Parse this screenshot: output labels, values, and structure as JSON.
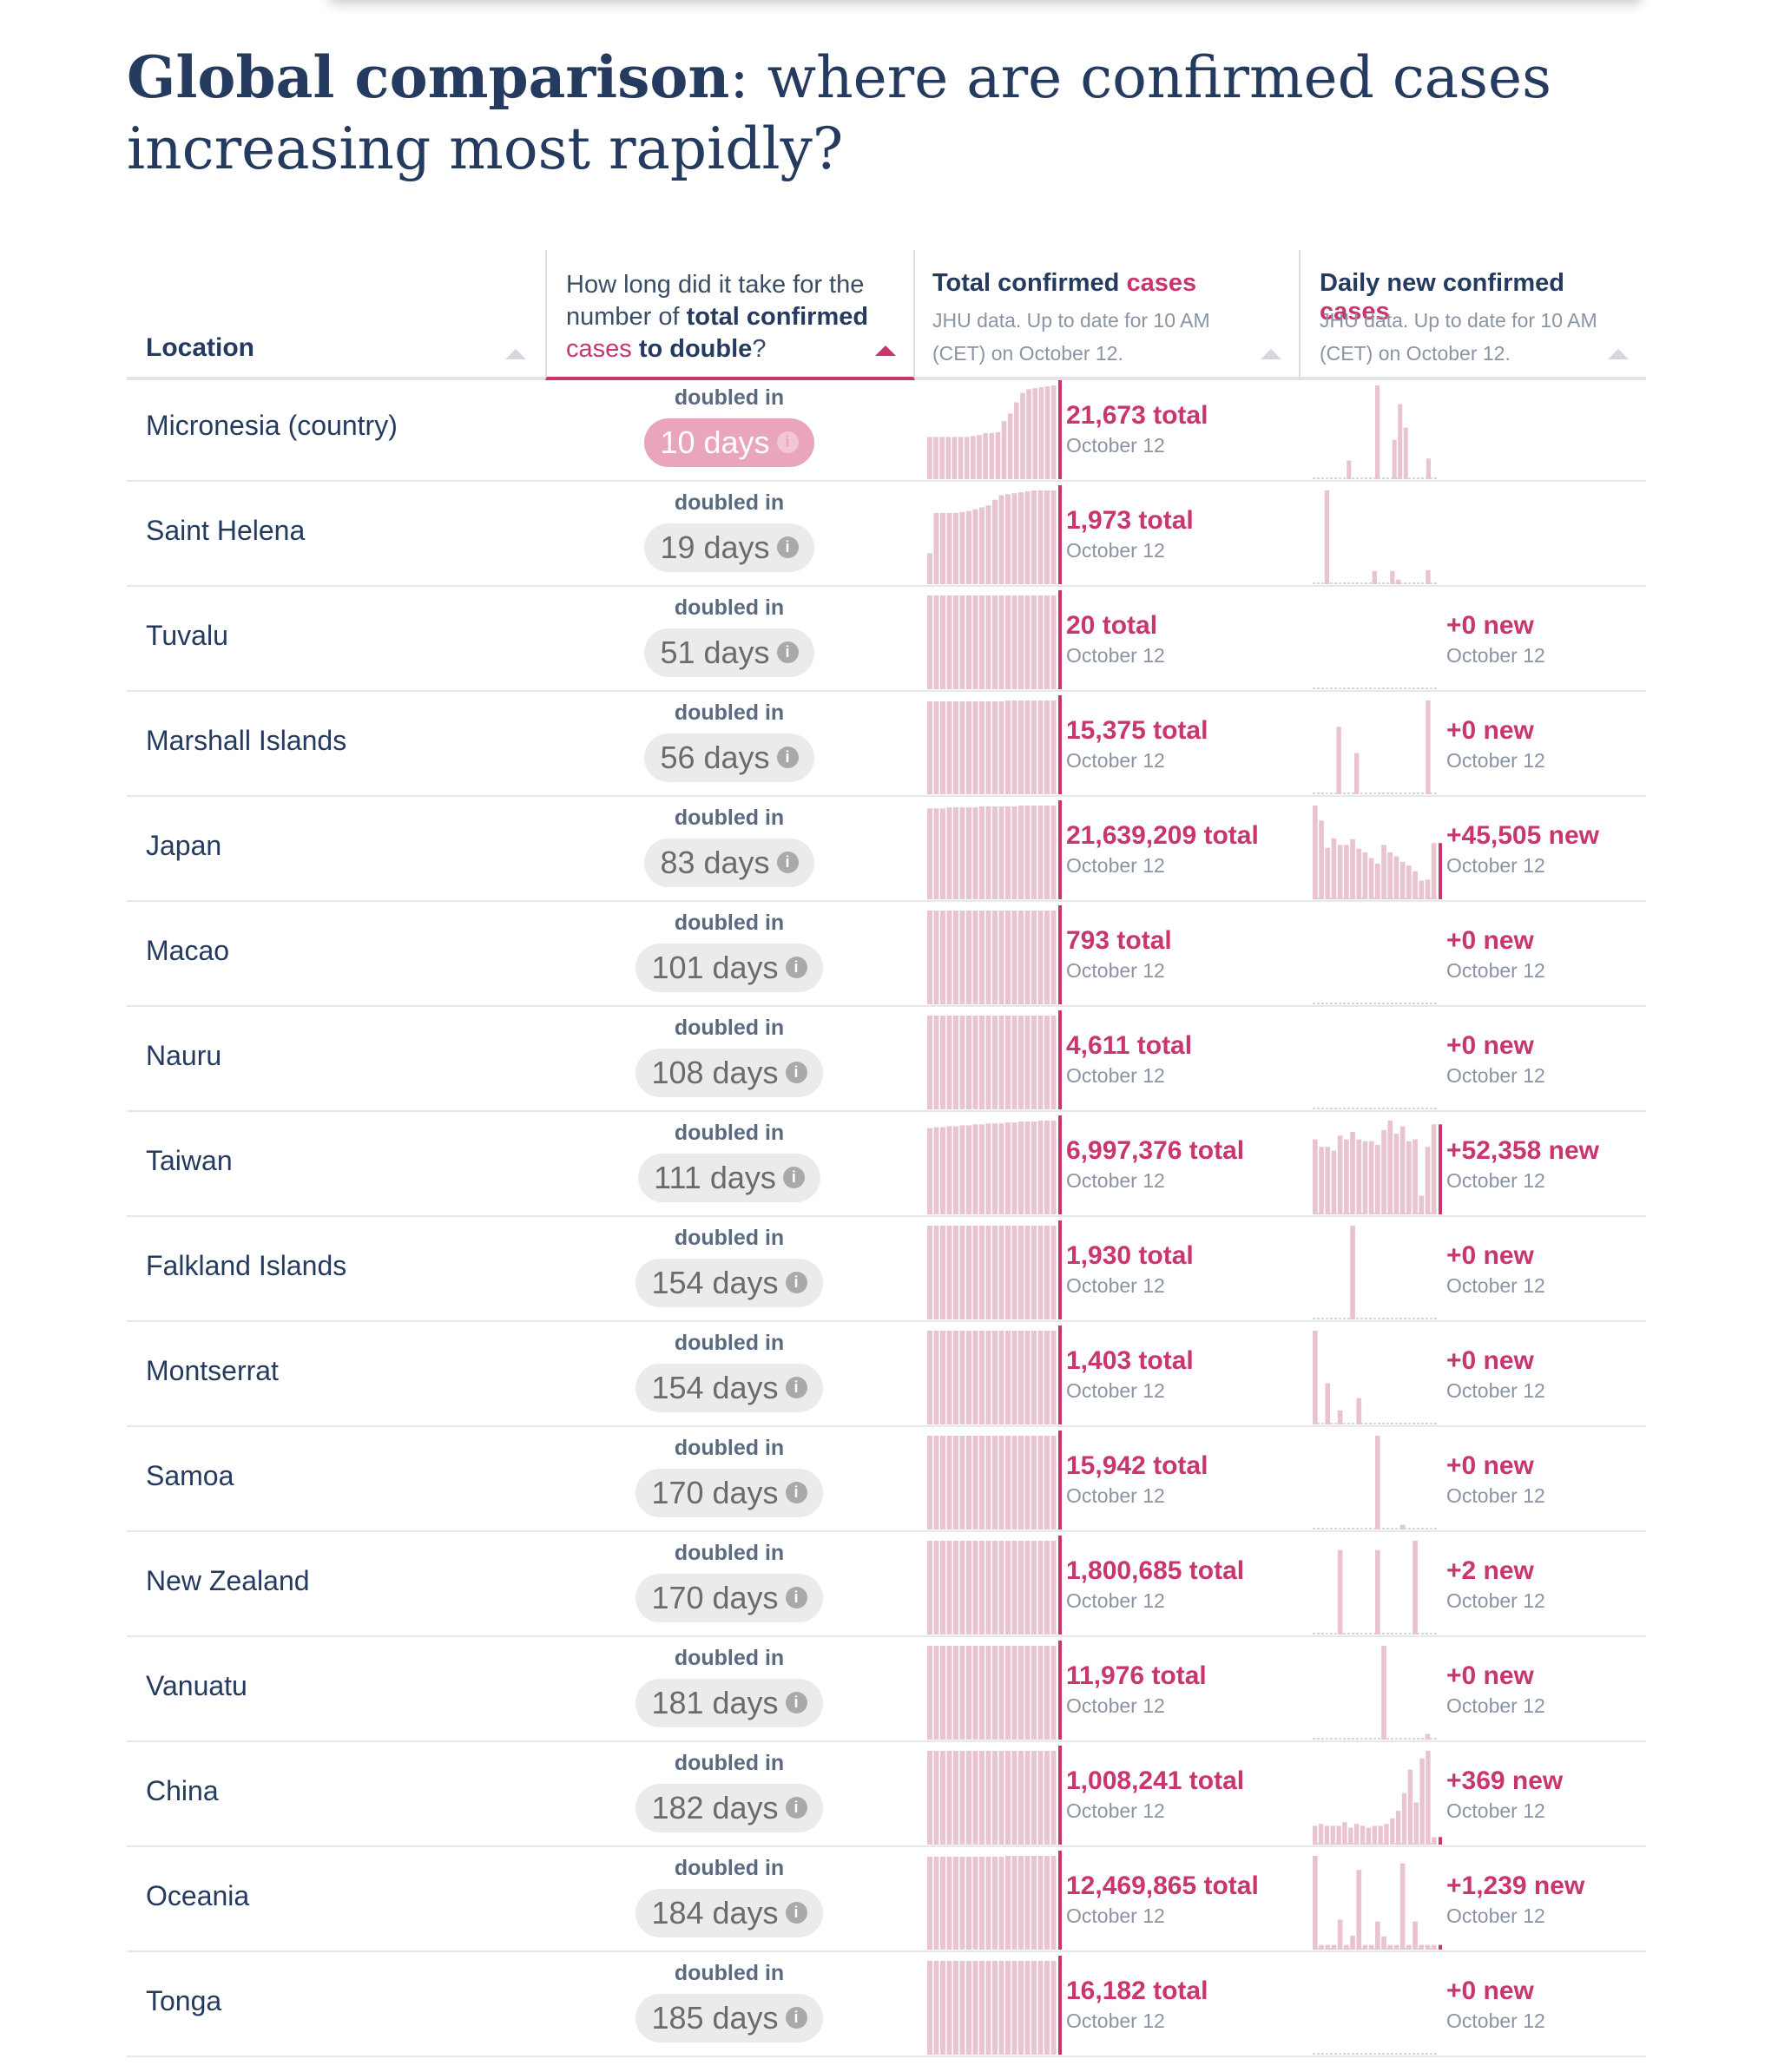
{
  "title": {
    "bold": "Global comparison",
    "rest": ": where are confirmed cases increasing most rapidly?"
  },
  "columns": {
    "location": "Location",
    "doubling": {
      "pre": "How long did it take for the number of ",
      "bold": "total confirmed",
      "pink": "cases",
      "post_bold": "to double",
      "post": "?"
    },
    "total": {
      "title": "Total confirmed",
      "pink": "cases",
      "sub": "JHU data. Up to date for 10 AM (CET) on October 12."
    },
    "daily": {
      "title": "Daily new confirmed",
      "pink": "cases",
      "sub": "JHU data. Up to date for 10 AM (CET) on October 12."
    }
  },
  "doubled_label": "doubled in",
  "info_icon_glyph": "i",
  "colors": {
    "accent": "#c9356f",
    "bar": "#e9c4cf",
    "hot_pill": "#e9a5bb",
    "pill": "#ebebeb"
  },
  "rows": [
    {
      "location": "Micronesia (country)",
      "days": "10 days",
      "hot": true,
      "total": "21,673 total",
      "total_date": "October 12",
      "new": "",
      "new_date": "",
      "total_spark": [
        0.45,
        0.45,
        0.45,
        0.45,
        0.45,
        0.45,
        0.45,
        0.46,
        0.47,
        0.49,
        0.49,
        0.5,
        0.62,
        0.7,
        0.82,
        0.92,
        0.96,
        0.97,
        0.98,
        0.99,
        1
      ],
      "daily_spark": [
        0,
        0,
        0,
        0,
        0,
        0,
        0.2,
        0,
        0,
        0,
        0,
        1,
        0,
        0,
        0.42,
        0.8,
        0.55,
        0,
        0,
        0,
        0.22,
        0
      ]
    },
    {
      "location": "Saint Helena",
      "days": "19 days",
      "hot": false,
      "total": "1,973 total",
      "total_date": "October 12",
      "new": "",
      "new_date": "",
      "total_spark": [
        0.33,
        0.76,
        0.76,
        0.76,
        0.76,
        0.77,
        0.78,
        0.8,
        0.82,
        0.84,
        0.9,
        0.95,
        0.96,
        0.97,
        0.98,
        0.99,
        1,
        1,
        1,
        1
      ],
      "daily_spark": [
        0,
        0,
        1,
        0,
        0,
        0,
        0,
        0,
        0,
        0,
        0.14,
        0,
        0,
        0.14,
        0.05,
        0,
        0,
        0,
        0,
        0.15,
        0
      ]
    },
    {
      "location": "Tuvalu",
      "days": "51 days",
      "hot": false,
      "total": "20 total",
      "total_date": "October 12",
      "new": "+0 new",
      "new_date": "October 12",
      "total_spark": [
        1,
        1,
        1,
        1,
        1,
        1,
        1,
        1,
        1,
        1,
        1,
        1,
        1,
        1,
        1,
        1,
        1,
        1,
        1,
        1
      ],
      "daily_spark": [
        0,
        0,
        0,
        0,
        0,
        0,
        0,
        0,
        0,
        0,
        0,
        0,
        0,
        0,
        0,
        0,
        0,
        0,
        0,
        0
      ]
    },
    {
      "location": "Marshall Islands",
      "days": "56 days",
      "hot": false,
      "total": "15,375 total",
      "total_date": "October 12",
      "new": "+0 new",
      "new_date": "October 12",
      "total_spark": [
        0.99,
        0.99,
        0.99,
        0.99,
        0.99,
        0.99,
        0.99,
        0.99,
        0.99,
        0.99,
        0.99,
        0.99,
        1,
        1,
        1,
        1,
        1,
        1,
        1,
        1
      ],
      "daily_spark": [
        0,
        0,
        0,
        0,
        0.72,
        0,
        0,
        0.44,
        0,
        0,
        0,
        0,
        0,
        0,
        0,
        0,
        0,
        0,
        0,
        1,
        0
      ]
    },
    {
      "location": "Japan",
      "days": "83 days",
      "hot": false,
      "total": "21,639,209 total",
      "total_date": "October 12",
      "new": "+45,505 new",
      "new_date": "October 12",
      "total_spark": [
        0.97,
        0.97,
        0.97,
        0.98,
        0.98,
        0.98,
        0.98,
        0.98,
        0.99,
        0.99,
        0.99,
        0.99,
        0.99,
        0.99,
        1,
        1,
        1,
        1,
        1,
        1
      ],
      "daily_spark": [
        1,
        0.84,
        0.55,
        0.65,
        0.58,
        0.58,
        0.64,
        0.54,
        0.5,
        0.44,
        0.38,
        0.58,
        0.5,
        0.46,
        0.4,
        0.36,
        0.3,
        0.2,
        0.21,
        0.6
      ]
    },
    {
      "location": "Macao",
      "days": "101 days",
      "hot": false,
      "total": "793 total",
      "total_date": "October 12",
      "new": "+0 new",
      "new_date": "October 12",
      "total_spark": [
        1,
        1,
        1,
        1,
        1,
        1,
        1,
        1,
        1,
        1,
        1,
        1,
        1,
        1,
        1,
        1,
        1,
        1,
        1,
        1
      ],
      "daily_spark": [
        0,
        0,
        0,
        0,
        0,
        0,
        0,
        0,
        0,
        0,
        0,
        0,
        0,
        0,
        0,
        0,
        0,
        0,
        0,
        0
      ]
    },
    {
      "location": "Nauru",
      "days": "108 days",
      "hot": false,
      "total": "4,611 total",
      "total_date": "October 12",
      "new": "+0 new",
      "new_date": "October 12",
      "total_spark": [
        1,
        1,
        1,
        1,
        1,
        1,
        1,
        1,
        1,
        1,
        1,
        1,
        1,
        1,
        1,
        1,
        1,
        1,
        1,
        1
      ],
      "daily_spark": [
        0,
        0,
        0,
        0,
        0,
        0,
        0,
        0,
        0,
        0,
        0,
        0,
        0,
        0,
        0,
        0,
        0,
        0,
        0,
        0
      ]
    },
    {
      "location": "Taiwan",
      "days": "111 days",
      "hot": false,
      "total": "6,997,376 total",
      "total_date": "October 12",
      "new": "+52,358 new",
      "new_date": "October 12",
      "total_spark": [
        0.92,
        0.93,
        0.93,
        0.94,
        0.94,
        0.95,
        0.95,
        0.96,
        0.96,
        0.97,
        0.97,
        0.97,
        0.98,
        0.98,
        0.99,
        0.99,
        0.99,
        1,
        1,
        1
      ],
      "daily_spark": [
        0.8,
        0.72,
        0.72,
        0.68,
        0.84,
        0.8,
        0.88,
        0.8,
        0.78,
        0.78,
        0.74,
        0.9,
        1,
        0.86,
        0.94,
        0.78,
        0.8,
        0.2,
        0.72,
        0.96
      ]
    },
    {
      "location": "Falkland Islands",
      "days": "154 days",
      "hot": false,
      "total": "1,930 total",
      "total_date": "October 12",
      "new": "+0 new",
      "new_date": "October 12",
      "total_spark": [
        1,
        1,
        1,
        1,
        1,
        1,
        1,
        1,
        1,
        1,
        1,
        1,
        1,
        1,
        1,
        1,
        1,
        1,
        1,
        1
      ],
      "daily_spark": [
        0,
        0,
        0,
        0,
        0,
        0,
        1,
        0,
        0,
        0,
        0,
        0,
        0,
        0,
        0,
        0,
        0,
        0,
        0,
        0
      ]
    },
    {
      "location": "Montserrat",
      "days": "154 days",
      "hot": false,
      "total": "1,403 total",
      "total_date": "October 12",
      "new": "+0 new",
      "new_date": "October 12",
      "total_spark": [
        1,
        1,
        1,
        1,
        1,
        1,
        1,
        1,
        1,
        1,
        1,
        1,
        1,
        1,
        1,
        1,
        1,
        1,
        1,
        1
      ],
      "daily_spark": [
        1,
        0,
        0.44,
        0,
        0.15,
        0,
        0,
        0.28,
        0,
        0,
        0,
        0,
        0,
        0,
        0,
        0,
        0,
        0,
        0,
        0
      ]
    },
    {
      "location": "Samoa",
      "days": "170 days",
      "hot": false,
      "total": "15,942 total",
      "total_date": "October 12",
      "new": "+0 new",
      "new_date": "October 12",
      "total_spark": [
        1,
        1,
        1,
        1,
        1,
        1,
        1,
        1,
        1,
        1,
        1,
        1,
        1,
        1,
        1,
        1,
        1,
        1,
        1,
        1
      ],
      "daily_spark": [
        0,
        0,
        0,
        0,
        0,
        0,
        0,
        0,
        0,
        0,
        1,
        0,
        0,
        0,
        0.05,
        0,
        0,
        0,
        0,
        0
      ]
    },
    {
      "location": "New Zealand",
      "days": "170 days",
      "hot": false,
      "total": "1,800,685 total",
      "total_date": "October 12",
      "new": "+2 new",
      "new_date": "October 12",
      "total_spark": [
        1,
        1,
        1,
        1,
        1,
        1,
        1,
        1,
        1,
        1,
        1,
        1,
        1,
        1,
        1,
        1,
        1,
        1,
        1,
        1
      ],
      "daily_spark": [
        0,
        0,
        0,
        0,
        0.9,
        0,
        0,
        0,
        0,
        0,
        0.9,
        0,
        0,
        0,
        0,
        0,
        1,
        0,
        0,
        0
      ]
    },
    {
      "location": "Vanuatu",
      "days": "181 days",
      "hot": false,
      "total": "11,976 total",
      "total_date": "October 12",
      "new": "+0 new",
      "new_date": "October 12",
      "total_spark": [
        1,
        1,
        1,
        1,
        1,
        1,
        1,
        1,
        1,
        1,
        1,
        1,
        1,
        1,
        1,
        1,
        1,
        1,
        1,
        1
      ],
      "daily_spark": [
        0,
        0,
        0,
        0,
        0,
        0,
        0,
        0,
        0,
        0,
        0,
        1,
        0,
        0,
        0,
        0,
        0,
        0,
        0.06,
        0
      ]
    },
    {
      "location": "China",
      "days": "182 days",
      "hot": false,
      "total": "1,008,241 total",
      "total_date": "October 12",
      "new": "+369 new",
      "new_date": "October 12",
      "total_spark": [
        1,
        1,
        1,
        1,
        1,
        1,
        1,
        1,
        1,
        1,
        1,
        1,
        1,
        1,
        1,
        1,
        1,
        1,
        1,
        1
      ],
      "daily_spark": [
        0.2,
        0.22,
        0.2,
        0.2,
        0.2,
        0.24,
        0.18,
        0.22,
        0.2,
        0.18,
        0.2,
        0.2,
        0.22,
        0.28,
        0.36,
        0.55,
        0.8,
        0.45,
        0.92,
        1,
        0.08
      ]
    },
    {
      "location": "Oceania",
      "days": "184 days",
      "hot": false,
      "total": "12,469,865 total",
      "total_date": "October 12",
      "new": "+1,239 new",
      "new_date": "October 12",
      "total_spark": [
        0.99,
        0.99,
        0.99,
        0.99,
        0.99,
        0.99,
        0.99,
        0.99,
        0.99,
        0.99,
        0.99,
        0.99,
        1,
        1,
        1,
        1,
        1,
        1,
        1,
        1
      ],
      "daily_spark": [
        1,
        0.05,
        0.05,
        0.05,
        0.32,
        0.05,
        0.15,
        0.85,
        0.05,
        0.05,
        0.3,
        0.14,
        0.05,
        0.05,
        0.92,
        0.05,
        0.3,
        0.05,
        0.05,
        0.05
      ]
    },
    {
      "location": "Tonga",
      "days": "185 days",
      "hot": false,
      "total": "16,182 total",
      "total_date": "October 12",
      "new": "+0 new",
      "new_date": "October 12",
      "total_spark": [
        1,
        1,
        1,
        1,
        1,
        1,
        1,
        1,
        1,
        1,
        1,
        1,
        1,
        1,
        1,
        1,
        1,
        1,
        1,
        1
      ],
      "daily_spark": [
        0,
        0,
        0,
        0,
        0,
        0,
        0,
        0,
        0,
        0,
        0,
        0,
        0,
        0,
        0,
        0,
        0,
        0,
        0,
        0
      ]
    }
  ]
}
